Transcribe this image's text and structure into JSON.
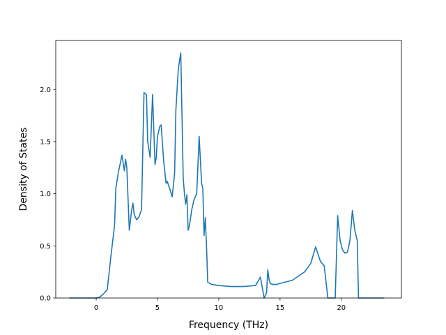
{
  "chart_data": {
    "type": "line",
    "title": "",
    "xlabel": "Frequency (THz)",
    "ylabel": "Density of States",
    "xlim": [
      -3.3,
      24.9
    ],
    "ylim": [
      0,
      2.47
    ],
    "xticks": [
      0,
      5,
      10,
      15,
      20
    ],
    "yticks": [
      0.0,
      0.5,
      1.0,
      1.5,
      2.0
    ],
    "ytick_labels": [
      "0.0",
      "0.5",
      "1.0",
      "1.5",
      "2.0"
    ],
    "grid": false,
    "legend": "none",
    "line_color": "#1f77b4",
    "series": [
      {
        "x": [
          -2.2,
          -1.0,
          0.0,
          0.3,
          0.6,
          0.9,
          1.2,
          1.5,
          1.6,
          1.8,
          2.1,
          2.3,
          2.4,
          2.5,
          2.7,
          2.9,
          3.0,
          3.1,
          3.3,
          3.5,
          3.7,
          3.9,
          4.1,
          4.2,
          4.4,
          4.6,
          4.8,
          4.9,
          5.0,
          5.2,
          5.3,
          5.5,
          5.7,
          5.8,
          5.9,
          6.0,
          6.2,
          6.4,
          6.5,
          6.7,
          6.9,
          7.1,
          7.2,
          7.3,
          7.4,
          7.5,
          7.6,
          7.8,
          8.0,
          8.2,
          8.4,
          8.6,
          8.7,
          8.8,
          8.9,
          9.0,
          9.1,
          9.3,
          9.4,
          10.0,
          11.0,
          12.0,
          13.0,
          13.4,
          13.7,
          13.9,
          14.0,
          14.1,
          14.2,
          14.4,
          14.7,
          15.0,
          16.0,
          17.0,
          17.5,
          17.9,
          18.1,
          18.3,
          18.6,
          18.9,
          19.0,
          19.5,
          19.7,
          19.9,
          20.1,
          20.3,
          20.5,
          20.7,
          20.9,
          21.1,
          21.3,
          21.4,
          21.5,
          22.5,
          23.5
        ],
        "y": [
          0.0,
          0.0,
          0.0,
          0.01,
          0.04,
          0.08,
          0.4,
          0.7,
          1.05,
          1.2,
          1.37,
          1.22,
          1.33,
          1.25,
          0.65,
          0.85,
          0.91,
          0.8,
          0.75,
          0.78,
          0.85,
          1.97,
          1.95,
          1.5,
          1.35,
          1.95,
          1.28,
          1.35,
          1.55,
          1.65,
          1.66,
          1.32,
          1.1,
          1.12,
          1.08,
          1.05,
          0.97,
          1.2,
          1.8,
          2.2,
          2.35,
          1.15,
          1.0,
          0.9,
          0.99,
          0.65,
          0.69,
          0.85,
          0.95,
          1.0,
          1.55,
          1.1,
          1.05,
          0.6,
          0.77,
          0.5,
          0.15,
          0.14,
          0.13,
          0.12,
          0.11,
          0.11,
          0.12,
          0.2,
          0.0,
          0.05,
          0.27,
          0.18,
          0.14,
          0.13,
          0.13,
          0.14,
          0.17,
          0.25,
          0.33,
          0.49,
          0.42,
          0.35,
          0.31,
          0.0,
          0.0,
          0.0,
          0.79,
          0.55,
          0.46,
          0.43,
          0.44,
          0.55,
          0.84,
          0.65,
          0.55,
          0.0,
          0.0,
          0.0,
          0.0
        ]
      }
    ]
  }
}
